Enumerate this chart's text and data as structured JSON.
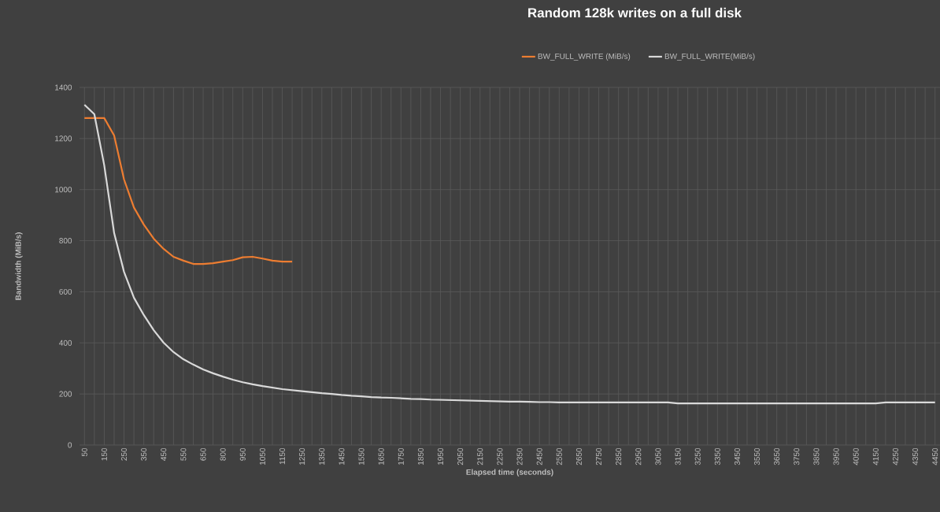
{
  "chart_data": {
    "type": "line",
    "title": "Random 128k writes on a full disk",
    "xlabel": "Elapsed time (seconds)",
    "ylabel": "Bandwidth (MiB/s)",
    "categories": [
      "50",
      null,
      "150",
      null,
      "250",
      null,
      "350",
      null,
      "450",
      null,
      "550",
      null,
      "650",
      null,
      "800",
      null,
      "950",
      null,
      "1050",
      null,
      "1150",
      null,
      "1250",
      null,
      "1350",
      null,
      "1450",
      null,
      "1550",
      null,
      "1650",
      null,
      "1750",
      null,
      "1850",
      null,
      "1950",
      null,
      "2050",
      null,
      "2150",
      null,
      "2250",
      null,
      "2350",
      null,
      "2450",
      null,
      "2550",
      null,
      "2650",
      null,
      "2750",
      null,
      "2850",
      null,
      "2950",
      null,
      "3050",
      null,
      "3150",
      null,
      "3250",
      null,
      "3350",
      null,
      "3450",
      null,
      "3550",
      null,
      "3650",
      null,
      "3750",
      null,
      "3850",
      null,
      "3950",
      null,
      "4050",
      null,
      "4150",
      null,
      "4250",
      null,
      "4350",
      null,
      "4450"
    ],
    "series": [
      {
        "name": "BW_FULL_WRITE (MiB/s)",
        "color": "#ed7d31",
        "values": [
          1280,
          1280,
          1280,
          1212,
          1040,
          930,
          863,
          808,
          768,
          737,
          722,
          709,
          709,
          712,
          718,
          724,
          735,
          737,
          730,
          722,
          718,
          718,
          null,
          null,
          null,
          null,
          null,
          null,
          null,
          null,
          null,
          null,
          null,
          null,
          null,
          null,
          null,
          null,
          null,
          null,
          null,
          null,
          null,
          null,
          null,
          null,
          null,
          null,
          null,
          null,
          null,
          null,
          null,
          null,
          null,
          null,
          null,
          null,
          null,
          null,
          null,
          null,
          null,
          null,
          null,
          null,
          null,
          null,
          null,
          null,
          null,
          null,
          null,
          null,
          null,
          null,
          null,
          null,
          null,
          null,
          null,
          null,
          null,
          null,
          null,
          null,
          null
        ]
      },
      {
        "name": "BW_FULL_WRITE(MiB/s)",
        "color": "#d9d9d9",
        "values": [
          1332,
          1295,
          1095,
          830,
          678,
          577,
          509,
          450,
          401,
          364,
          336,
          315,
          296,
          281,
          268,
          256,
          246,
          238,
          231,
          225,
          219,
          215,
          211,
          207,
          203,
          200,
          196,
          193,
          191,
          188,
          186,
          185,
          183,
          181,
          180,
          178,
          177,
          176,
          175,
          174,
          173,
          172,
          171,
          170,
          170,
          169,
          168,
          168,
          167,
          167,
          167,
          167,
          167,
          167,
          167,
          167,
          167,
          167,
          167,
          167,
          163,
          163,
          163,
          163,
          163,
          163,
          163,
          163,
          163,
          163,
          163,
          163,
          163,
          163,
          163,
          163,
          163,
          163,
          163,
          163,
          163,
          167,
          167,
          167,
          167,
          167,
          167
        ]
      }
    ],
    "ylim": [
      0,
      1400
    ],
    "yticks": [
      0,
      200,
      400,
      600,
      800,
      1000,
      1200,
      1400
    ],
    "grid": true,
    "legend": "top"
  }
}
